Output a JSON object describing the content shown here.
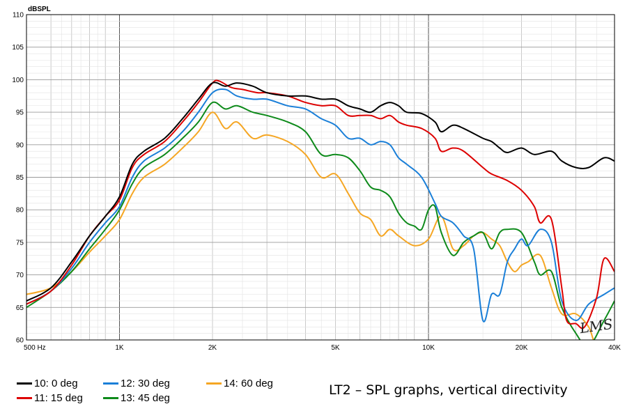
{
  "chart_data": {
    "type": "line",
    "ylabel": "dBSPL",
    "xscale": "log",
    "xlim": [
      500,
      40000
    ],
    "ylim": [
      60,
      110
    ],
    "grid": true,
    "x_ticks": [
      {
        "value": 500,
        "label": "500  Hz"
      },
      {
        "value": 1000,
        "label": "1K"
      },
      {
        "value": 2000,
        "label": "2K"
      },
      {
        "value": 5000,
        "label": "5K"
      },
      {
        "value": 10000,
        "label": "10K"
      },
      {
        "value": 20000,
        "label": "20K"
      },
      {
        "value": 40000,
        "label": "40K"
      }
    ],
    "y_ticks": [
      60,
      65,
      70,
      75,
      80,
      85,
      90,
      95,
      100,
      105,
      110
    ],
    "series": [
      {
        "name": "10: 0 deg",
        "color": "#000000",
        "points": [
          [
            500,
            66
          ],
          [
            600,
            68
          ],
          [
            700,
            72
          ],
          [
            800,
            76
          ],
          [
            900,
            79
          ],
          [
            1000,
            82
          ],
          [
            1100,
            87
          ],
          [
            1200,
            89
          ],
          [
            1400,
            91
          ],
          [
            1600,
            94
          ],
          [
            1800,
            97
          ],
          [
            2000,
            99.5
          ],
          [
            2200,
            99
          ],
          [
            2400,
            99.5
          ],
          [
            2700,
            99
          ],
          [
            3000,
            98
          ],
          [
            3500,
            97.5
          ],
          [
            4000,
            97.5
          ],
          [
            4500,
            97
          ],
          [
            5000,
            97
          ],
          [
            5500,
            96
          ],
          [
            6000,
            95.5
          ],
          [
            6500,
            95
          ],
          [
            7000,
            96
          ],
          [
            7500,
            96.5
          ],
          [
            8000,
            96
          ],
          [
            8500,
            95
          ],
          [
            9500,
            94.8
          ],
          [
            10500,
            93.5
          ],
          [
            11000,
            92
          ],
          [
            12000,
            93
          ],
          [
            13000,
            92.5
          ],
          [
            15000,
            91
          ],
          [
            16000,
            90.5
          ],
          [
            17000,
            89.5
          ],
          [
            18000,
            88.8
          ],
          [
            20000,
            89.5
          ],
          [
            22000,
            88.5
          ],
          [
            25000,
            89
          ],
          [
            27000,
            87.5
          ],
          [
            30000,
            86.5
          ],
          [
            33000,
            86.5
          ],
          [
            37000,
            88
          ],
          [
            40000,
            87.5
          ]
        ]
      },
      {
        "name": "11: 15 deg",
        "color": "#dd0000",
        "points": [
          [
            500,
            65.5
          ],
          [
            600,
            67.5
          ],
          [
            700,
            71.5
          ],
          [
            800,
            76
          ],
          [
            900,
            79
          ],
          [
            1000,
            81.5
          ],
          [
            1100,
            86.5
          ],
          [
            1200,
            88.5
          ],
          [
            1400,
            90.5
          ],
          [
            1600,
            93.5
          ],
          [
            1800,
            96.5
          ],
          [
            2000,
            99.5
          ],
          [
            2100,
            99.8
          ],
          [
            2300,
            98.8
          ],
          [
            2500,
            98.5
          ],
          [
            2800,
            98
          ],
          [
            3000,
            98
          ],
          [
            3500,
            97.5
          ],
          [
            4000,
            96.5
          ],
          [
            4500,
            96
          ],
          [
            5000,
            96
          ],
          [
            5500,
            94.5
          ],
          [
            6000,
            94.5
          ],
          [
            6500,
            94.5
          ],
          [
            7000,
            94
          ],
          [
            7500,
            94.5
          ],
          [
            8000,
            93.5
          ],
          [
            8500,
            93
          ],
          [
            9500,
            92.5
          ],
          [
            10500,
            91
          ],
          [
            11000,
            89
          ],
          [
            12000,
            89.5
          ],
          [
            13000,
            89
          ],
          [
            15000,
            86.5
          ],
          [
            16000,
            85.5
          ],
          [
            18000,
            84.5
          ],
          [
            20000,
            83
          ],
          [
            22000,
            80.5
          ],
          [
            23000,
            78
          ],
          [
            25000,
            78.5
          ],
          [
            27000,
            68
          ],
          [
            28000,
            63
          ],
          [
            30000,
            62.5
          ],
          [
            32000,
            62
          ],
          [
            35000,
            66.5
          ],
          [
            37000,
            72.5
          ],
          [
            40000,
            70.5
          ]
        ]
      },
      {
        "name": "12: 30 deg",
        "color": "#1a7fd8",
        "points": [
          [
            500,
            65.5
          ],
          [
            600,
            67.5
          ],
          [
            700,
            71
          ],
          [
            800,
            75
          ],
          [
            900,
            78
          ],
          [
            1000,
            80.5
          ],
          [
            1100,
            85
          ],
          [
            1200,
            87.5
          ],
          [
            1400,
            89.5
          ],
          [
            1600,
            92
          ],
          [
            1800,
            95
          ],
          [
            2000,
            98
          ],
          [
            2200,
            98.5
          ],
          [
            2400,
            97.5
          ],
          [
            2700,
            97
          ],
          [
            3000,
            97
          ],
          [
            3500,
            96
          ],
          [
            4000,
            95.5
          ],
          [
            4500,
            94
          ],
          [
            5000,
            93
          ],
          [
            5500,
            91
          ],
          [
            6000,
            91
          ],
          [
            6500,
            90
          ],
          [
            7000,
            90.5
          ],
          [
            7500,
            90
          ],
          [
            8000,
            88
          ],
          [
            8500,
            87
          ],
          [
            9500,
            85
          ],
          [
            10500,
            81
          ],
          [
            11000,
            79
          ],
          [
            12000,
            78
          ],
          [
            13000,
            76
          ],
          [
            14000,
            74
          ],
          [
            15000,
            63
          ],
          [
            16000,
            67
          ],
          [
            17000,
            67
          ],
          [
            18000,
            72
          ],
          [
            19000,
            74
          ],
          [
            20000,
            75.5
          ],
          [
            21000,
            74.5
          ],
          [
            23000,
            77
          ],
          [
            25000,
            75
          ],
          [
            27000,
            66
          ],
          [
            30000,
            63
          ],
          [
            33000,
            65.5
          ],
          [
            37000,
            67
          ],
          [
            40000,
            68
          ]
        ]
      },
      {
        "name": "13: 45 deg",
        "color": "#0d8a1a",
        "points": [
          [
            500,
            65
          ],
          [
            600,
            67.5
          ],
          [
            700,
            70.5
          ],
          [
            800,
            74
          ],
          [
            900,
            77
          ],
          [
            1000,
            80
          ],
          [
            1100,
            84
          ],
          [
            1200,
            86.5
          ],
          [
            1400,
            88.5
          ],
          [
            1600,
            91
          ],
          [
            1800,
            93.5
          ],
          [
            2000,
            96.5
          ],
          [
            2200,
            95.5
          ],
          [
            2400,
            96
          ],
          [
            2700,
            95
          ],
          [
            3000,
            94.5
          ],
          [
            3500,
            93.5
          ],
          [
            4000,
            92
          ],
          [
            4500,
            88.5
          ],
          [
            5000,
            88.5
          ],
          [
            5500,
            88
          ],
          [
            6000,
            86
          ],
          [
            6500,
            83.5
          ],
          [
            7000,
            83
          ],
          [
            7500,
            82
          ],
          [
            8000,
            79.5
          ],
          [
            8500,
            78
          ],
          [
            9000,
            77.5
          ],
          [
            9500,
            77
          ],
          [
            10000,
            80
          ],
          [
            10500,
            80.5
          ],
          [
            11000,
            76.5
          ],
          [
            12000,
            73
          ],
          [
            13000,
            75
          ],
          [
            14000,
            76
          ],
          [
            15000,
            76.5
          ],
          [
            16000,
            74
          ],
          [
            17000,
            76.5
          ],
          [
            18000,
            77
          ],
          [
            20000,
            76.5
          ],
          [
            22000,
            72
          ],
          [
            23000,
            70
          ],
          [
            25000,
            70.5
          ],
          [
            27000,
            65
          ],
          [
            30000,
            61
          ],
          [
            33000,
            59
          ],
          [
            37000,
            63
          ],
          [
            40000,
            66
          ]
        ]
      },
      {
        "name": "14: 60 deg",
        "color": "#f5a623",
        "points": [
          [
            500,
            67
          ],
          [
            600,
            68
          ],
          [
            700,
            70.5
          ],
          [
            800,
            73.5
          ],
          [
            900,
            76
          ],
          [
            1000,
            78.5
          ],
          [
            1100,
            82.5
          ],
          [
            1200,
            85
          ],
          [
            1400,
            87
          ],
          [
            1600,
            89.5
          ],
          [
            1800,
            92
          ],
          [
            2000,
            95
          ],
          [
            2200,
            92.5
          ],
          [
            2400,
            93.5
          ],
          [
            2700,
            91
          ],
          [
            3000,
            91.5
          ],
          [
            3500,
            90.5
          ],
          [
            4000,
            88.5
          ],
          [
            4500,
            85
          ],
          [
            5000,
            85.5
          ],
          [
            5500,
            82.5
          ],
          [
            6000,
            79.5
          ],
          [
            6500,
            78.5
          ],
          [
            7000,
            76
          ],
          [
            7500,
            77
          ],
          [
            8000,
            76
          ],
          [
            9000,
            74.5
          ],
          [
            10000,
            75.5
          ],
          [
            11000,
            79
          ],
          [
            12000,
            74
          ],
          [
            13000,
            74.5
          ],
          [
            14000,
            76
          ],
          [
            15000,
            76.5
          ],
          [
            16000,
            75.5
          ],
          [
            17000,
            74.5
          ],
          [
            18000,
            72
          ],
          [
            19000,
            70.5
          ],
          [
            20000,
            71.5
          ],
          [
            21000,
            72
          ],
          [
            23000,
            73
          ],
          [
            25000,
            68
          ],
          [
            27000,
            64
          ],
          [
            30000,
            64
          ],
          [
            33000,
            62
          ],
          [
            35000,
            59
          ],
          [
            40000,
            57
          ]
        ]
      }
    ]
  },
  "legend": [
    {
      "label": "10: 0 deg",
      "color": "#000000"
    },
    {
      "label": "11: 15 deg",
      "color": "#dd0000"
    },
    {
      "label": "12: 30 deg",
      "color": "#1a7fd8"
    },
    {
      "label": "13: 45 deg",
      "color": "#0d8a1a"
    },
    {
      "label": "14: 60 deg",
      "color": "#f5a623"
    }
  ],
  "caption": "LT2 – SPL graphs, vertical directivity",
  "watermark": "LMS"
}
